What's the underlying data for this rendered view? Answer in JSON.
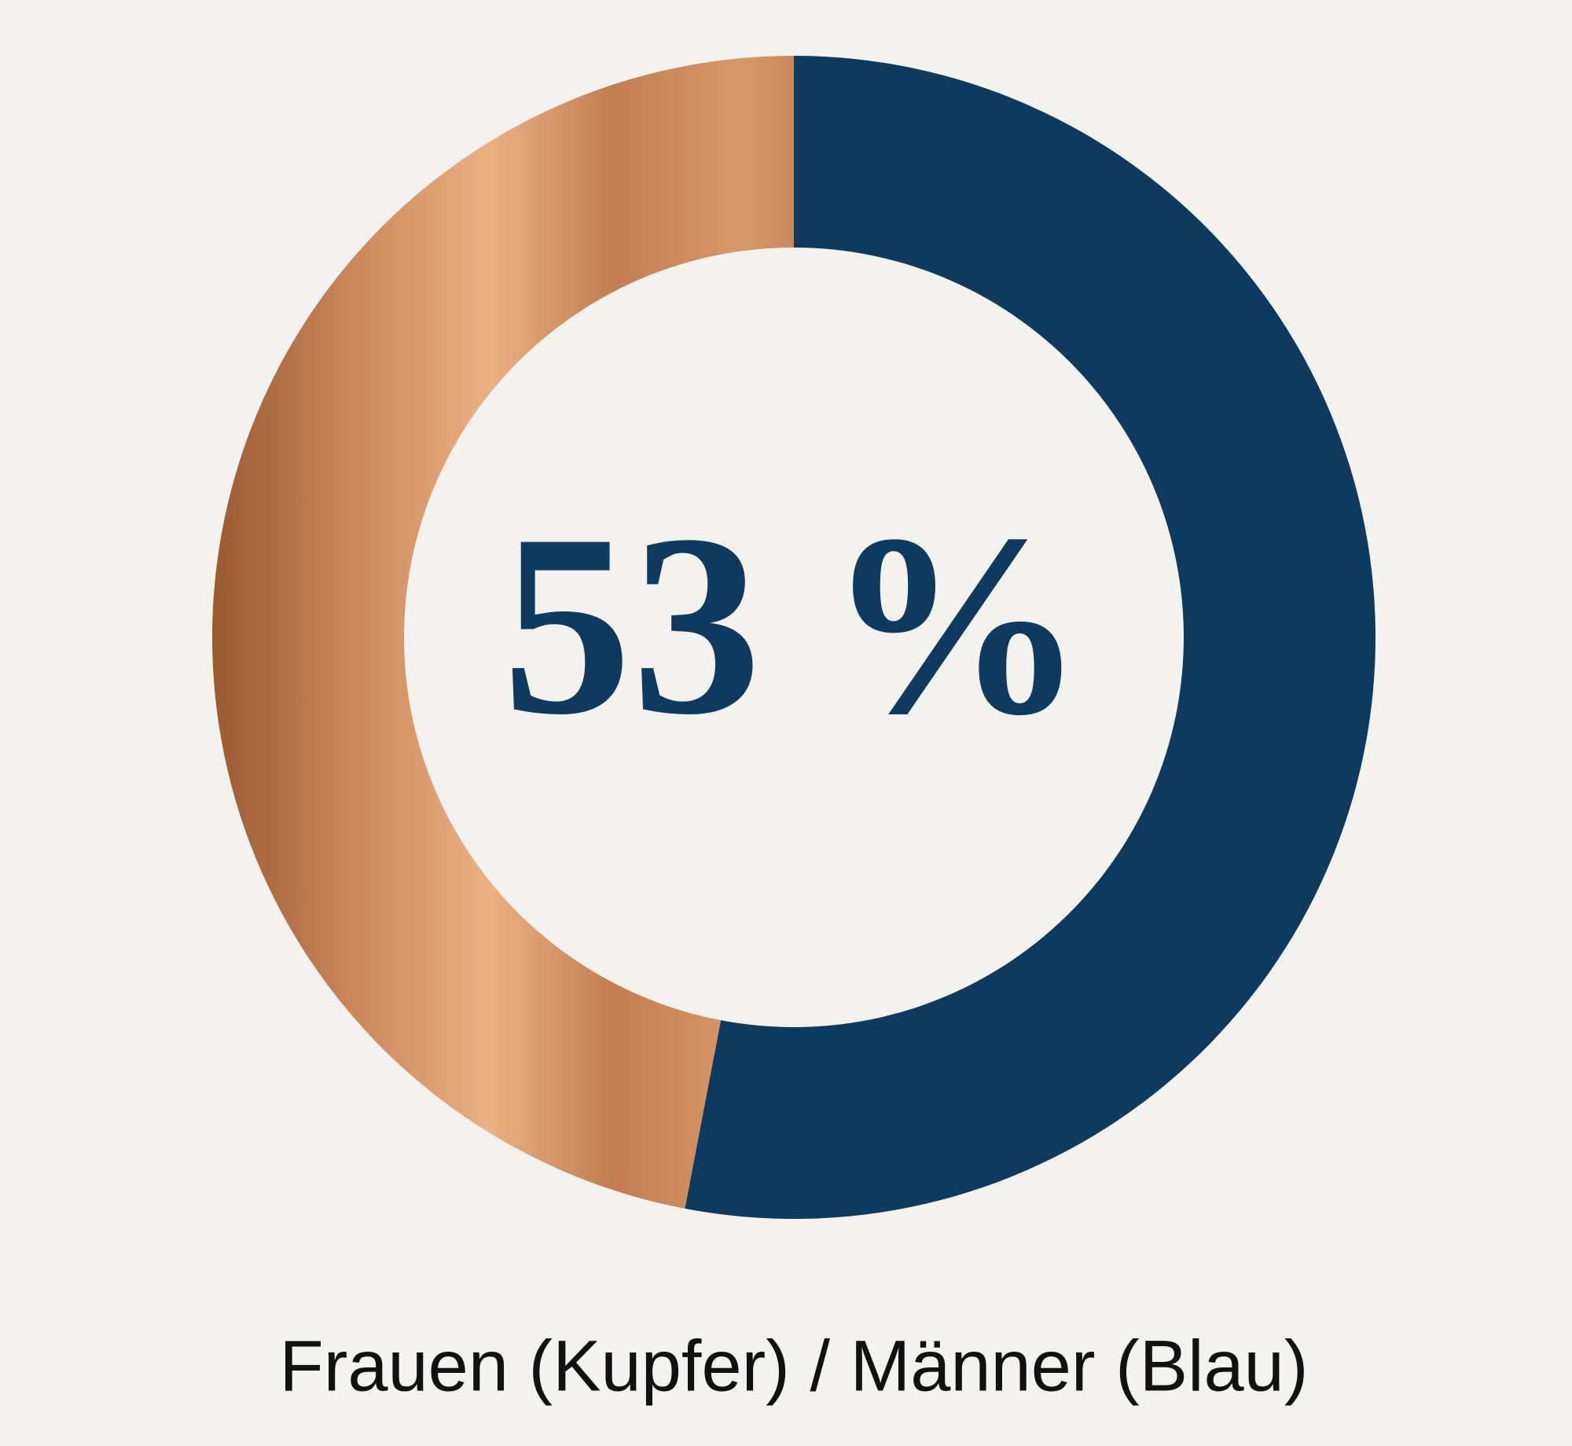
{
  "chart_data": {
    "type": "donut",
    "values": [
      53,
      47
    ],
    "value_labels": [
      "53 %",
      null
    ],
    "colors": [
      "#0d3a5e",
      "#c07a4a"
    ],
    "caption": "Frauen (Kupfer) / Männer (Blau)"
  }
}
